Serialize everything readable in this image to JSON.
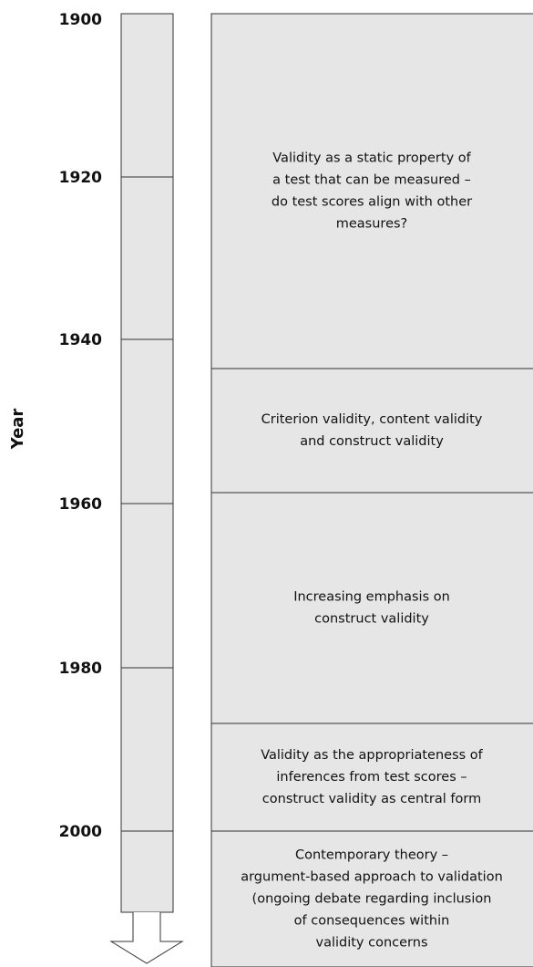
{
  "axis_label": "Year",
  "years": [
    "1900",
    "1920",
    "1940",
    "1960",
    "1980",
    "2000"
  ],
  "periods": [
    {
      "lines": [
        "Validity as a static property of",
        "a test that can be measured –",
        "do test scores align with other",
        "measures?"
      ]
    },
    {
      "lines": [
        "Criterion validity, content validity",
        "and construct validity"
      ]
    },
    {
      "lines": [
        "Increasing emphasis on",
        "construct validity"
      ]
    },
    {
      "lines": [
        "Validity as the appropriateness of",
        "inferences from test scores –",
        "construct validity as central form"
      ]
    },
    {
      "lines": [
        "Contemporary theory –",
        "argument-based approach to validation",
        "(ongoing debate regarding inclusion",
        "of consequences within",
        "validity concerns"
      ]
    }
  ]
}
